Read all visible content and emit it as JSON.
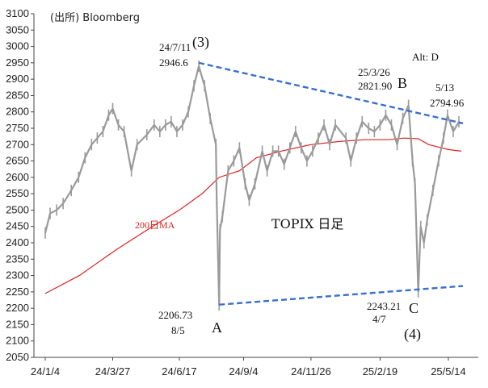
{
  "chart_data": {
    "type": "line",
    "title": "TOPIX 日足",
    "source": "(出所) Bloomberg",
    "corner_label": "Alt: D",
    "ylim": [
      2050,
      3100
    ],
    "yticks": [
      2050,
      2100,
      2150,
      2200,
      2250,
      2300,
      2350,
      2400,
      2450,
      2500,
      2550,
      2600,
      2650,
      2700,
      2750,
      2800,
      2850,
      2900,
      2950,
      3000,
      3050,
      3100
    ],
    "ytick_labels": [
      "2050",
      "2100",
      "2150",
      "2200",
      "2250",
      "2300",
      "2350",
      "2400",
      "2450",
      "2500",
      "2550",
      "2600",
      "2650",
      "2700",
      "2750",
      "2800",
      "2850",
      "2900",
      "2950",
      "3000",
      "3050",
      "3100"
    ],
    "xticks": [
      "2024-01-04",
      "2024-03-27",
      "2024-06-17",
      "2024-09-04",
      "2024-11-26",
      "2025-02-19",
      "2025-05-14"
    ],
    "xtick_labels": [
      "24/1/4",
      "24/3/27",
      "24/6/17",
      "24/9/4",
      "24/11/26",
      "25/2/19",
      "25/5/14"
    ],
    "xlim": [
      "2024-01-04",
      "2025-06-01"
    ],
    "grid": false,
    "series": [
      {
        "type": "line",
        "color": "#9a9a9a",
        "points": [
          [
            "2024-01-04",
            2430
          ],
          [
            "2024-01-10",
            2490
          ],
          [
            "2024-01-18",
            2500
          ],
          [
            "2024-01-26",
            2520
          ],
          [
            "2024-02-05",
            2560
          ],
          [
            "2024-02-14",
            2600
          ],
          [
            "2024-02-22",
            2660
          ],
          [
            "2024-03-01",
            2700
          ],
          [
            "2024-03-08",
            2720
          ],
          [
            "2024-03-15",
            2740
          ],
          [
            "2024-03-22",
            2790
          ],
          [
            "2024-03-27",
            2810
          ],
          [
            "2024-04-03",
            2760
          ],
          [
            "2024-04-10",
            2740
          ],
          [
            "2024-04-19",
            2620
          ],
          [
            "2024-04-26",
            2700
          ],
          [
            "2024-05-08",
            2730
          ],
          [
            "2024-05-17",
            2760
          ],
          [
            "2024-05-24",
            2740
          ],
          [
            "2024-05-31",
            2760
          ],
          [
            "2024-06-07",
            2770
          ],
          [
            "2024-06-14",
            2740
          ],
          [
            "2024-06-21",
            2760
          ],
          [
            "2024-06-28",
            2800
          ],
          [
            "2024-07-05",
            2880
          ],
          [
            "2024-07-11",
            2940
          ],
          [
            "2024-07-18",
            2880
          ],
          [
            "2024-07-25",
            2780
          ],
          [
            "2024-08-01",
            2700
          ],
          [
            "2024-08-02",
            2530
          ],
          [
            "2024-08-05",
            2210
          ],
          [
            "2024-08-06",
            2440
          ],
          [
            "2024-08-09",
            2480
          ],
          [
            "2024-08-16",
            2620
          ],
          [
            "2024-08-23",
            2650
          ],
          [
            "2024-08-30",
            2690
          ],
          [
            "2024-09-06",
            2580
          ],
          [
            "2024-09-11",
            2530
          ],
          [
            "2024-09-18",
            2580
          ],
          [
            "2024-09-27",
            2680
          ],
          [
            "2024-10-03",
            2620
          ],
          [
            "2024-10-10",
            2680
          ],
          [
            "2024-10-17",
            2680
          ],
          [
            "2024-10-24",
            2640
          ],
          [
            "2024-10-31",
            2690
          ],
          [
            "2024-11-07",
            2740
          ],
          [
            "2024-11-14",
            2690
          ],
          [
            "2024-11-21",
            2650
          ],
          [
            "2024-11-28",
            2680
          ],
          [
            "2024-12-05",
            2720
          ],
          [
            "2024-12-12",
            2760
          ],
          [
            "2024-12-19",
            2700
          ],
          [
            "2024-12-26",
            2760
          ],
          [
            "2025-01-08",
            2720
          ],
          [
            "2025-01-14",
            2650
          ],
          [
            "2025-01-21",
            2720
          ],
          [
            "2025-01-28",
            2770
          ],
          [
            "2025-02-05",
            2750
          ],
          [
            "2025-02-12",
            2740
          ],
          [
            "2025-02-19",
            2760
          ],
          [
            "2025-02-26",
            2790
          ],
          [
            "2025-03-05",
            2760
          ],
          [
            "2025-03-12",
            2700
          ],
          [
            "2025-03-19",
            2780
          ],
          [
            "2025-03-26",
            2820
          ],
          [
            "2025-03-31",
            2650
          ],
          [
            "2025-04-03",
            2580
          ],
          [
            "2025-04-07",
            2250
          ],
          [
            "2025-04-10",
            2450
          ],
          [
            "2025-04-14",
            2400
          ],
          [
            "2025-04-18",
            2470
          ],
          [
            "2025-04-25",
            2560
          ],
          [
            "2025-05-02",
            2650
          ],
          [
            "2025-05-08",
            2720
          ],
          [
            "2025-05-13",
            2790
          ],
          [
            "2025-05-20",
            2740
          ],
          [
            "2025-05-27",
            2770
          ]
        ]
      },
      {
        "name": "200日MA",
        "type": "line",
        "color": "#e02020",
        "points": [
          [
            "2024-01-04",
            2245
          ],
          [
            "2024-02-15",
            2300
          ],
          [
            "2024-04-01",
            2380
          ],
          [
            "2024-05-15",
            2450
          ],
          [
            "2024-06-17",
            2500
          ],
          [
            "2024-07-15",
            2550
          ],
          [
            "2024-08-05",
            2600
          ],
          [
            "2024-08-30",
            2620
          ],
          [
            "2024-09-20",
            2660
          ],
          [
            "2024-10-20",
            2680
          ],
          [
            "2024-11-26",
            2700
          ],
          [
            "2025-01-01",
            2710
          ],
          [
            "2025-02-01",
            2715
          ],
          [
            "2025-03-01",
            2715
          ],
          [
            "2025-03-20",
            2720
          ],
          [
            "2025-04-07",
            2718
          ],
          [
            "2025-04-20",
            2700
          ],
          [
            "2025-05-14",
            2685
          ],
          [
            "2025-05-30",
            2680
          ]
        ]
      }
    ],
    "trendlines": [
      {
        "name": "upper",
        "color": "#3a6fcc",
        "from": [
          "2024-07-11",
          2950
        ],
        "to": [
          "2025-06-01",
          2765
        ]
      },
      {
        "name": "lower",
        "color": "#3a6fcc",
        "from": [
          "2024-08-05",
          2211
        ],
        "to": [
          "2025-06-01",
          2268
        ]
      }
    ],
    "annotations": [
      {
        "text": "24/7/11",
        "kind": "ann"
      },
      {
        "text": "2946.6",
        "kind": "ann"
      },
      {
        "text": "(3)",
        "kind": "big"
      },
      {
        "text": "25/3/26",
        "kind": "ann"
      },
      {
        "text": "2821.90",
        "kind": "ann"
      },
      {
        "text": "B",
        "kind": "big"
      },
      {
        "text": "5/13",
        "kind": "ann"
      },
      {
        "text": "2794.96",
        "kind": "ann"
      },
      {
        "text": "2206.73",
        "kind": "ann"
      },
      {
        "text": "8/5",
        "kind": "ann"
      },
      {
        "text": "A",
        "kind": "big"
      },
      {
        "text": "2243.21",
        "kind": "ann"
      },
      {
        "text": "4/7",
        "kind": "ann"
      },
      {
        "text": "C",
        "kind": "big"
      },
      {
        "text": "(4)",
        "kind": "big"
      },
      {
        "text": "200日MA",
        "kind": "ma"
      }
    ]
  }
}
